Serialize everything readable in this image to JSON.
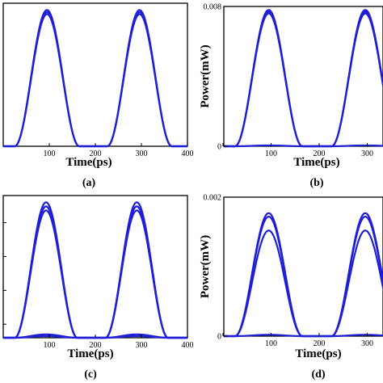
{
  "chart_data": [
    {
      "id": "a",
      "type": "line",
      "panel_label": "(a)",
      "xlabel": "Time(ps)",
      "ylabel": "",
      "xlim": [
        0,
        400
      ],
      "ylim": [
        0,
        1.05
      ],
      "x_ticks": [
        0,
        100,
        200,
        300,
        400
      ],
      "x_tick_labels": [
        "",
        "100",
        "200",
        "300",
        "400"
      ],
      "y_ticks": [],
      "y_tick_labels": [],
      "series_color": "#1f1fd6",
      "pulse_centers": [
        95,
        296
      ],
      "pulse_half_width": 70,
      "series": [
        {
          "peak": 1.0
        },
        {
          "peak": 0.985
        },
        {
          "peak": 0.97
        }
      ]
    },
    {
      "id": "b",
      "type": "line",
      "panel_label": "(b)",
      "xlabel": "Time(ps)",
      "ylabel": "Power(mW)",
      "xlim": [
        0,
        400
      ],
      "ylim": [
        0,
        0.008
      ],
      "x_ticks": [
        0,
        100,
        200,
        300
      ],
      "x_tick_labels": [
        "",
        "100",
        "200",
        "300"
      ],
      "y_ticks": [
        0,
        0.008
      ],
      "y_tick_labels": [
        "0",
        "0.008"
      ],
      "series_color": "#1f1fd6",
      "pulse_centers": [
        95,
        296
      ],
      "pulse_half_width": 70,
      "series": [
        {
          "peak": 0.0078
        },
        {
          "peak": 0.0077
        },
        {
          "peak": 0.0076
        },
        {
          "peak": 5e-05
        }
      ]
    },
    {
      "id": "c",
      "type": "line",
      "panel_label": "(c)",
      "xlabel": "Time(ps)",
      "ylabel": "",
      "xlim": [
        0,
        400
      ],
      "ylim": [
        0,
        1.05
      ],
      "x_ticks": [
        0,
        100,
        200,
        300,
        400
      ],
      "x_tick_labels": [
        "",
        "100",
        "200",
        "300",
        "400"
      ],
      "y_ticks": [
        0.1,
        0.35,
        0.6,
        0.85
      ],
      "y_tick_labels": [
        "",
        "",
        "",
        ""
      ],
      "series_color": "#1f1fd6",
      "pulse_centers": [
        93,
        290
      ],
      "pulse_half_width": 68,
      "series": [
        {
          "peak": 1.0
        },
        {
          "peak": 0.97
        },
        {
          "peak": 0.94
        },
        {
          "peak": 0.025
        },
        {
          "peak": 0.012
        }
      ]
    },
    {
      "id": "d",
      "type": "line",
      "panel_label": "(d)",
      "xlabel": "Time(ps)",
      "ylabel": "Power(mW)",
      "xlim": [
        0,
        400
      ],
      "ylim": [
        0,
        0.002
      ],
      "x_ticks": [
        0,
        100,
        200,
        300
      ],
      "x_tick_labels": [
        "",
        "100",
        "200",
        "300"
      ],
      "y_ticks": [
        0,
        0.002
      ],
      "y_tick_labels": [
        "0",
        "0.002"
      ],
      "series_color": "#1f1fd6",
      "pulse_centers": [
        95,
        296
      ],
      "pulse_half_width": 70,
      "series": [
        {
          "peak": 0.00177
        },
        {
          "peak": 0.00172
        },
        {
          "peak": 0.00152
        },
        {
          "peak": 2e-05
        }
      ]
    }
  ]
}
